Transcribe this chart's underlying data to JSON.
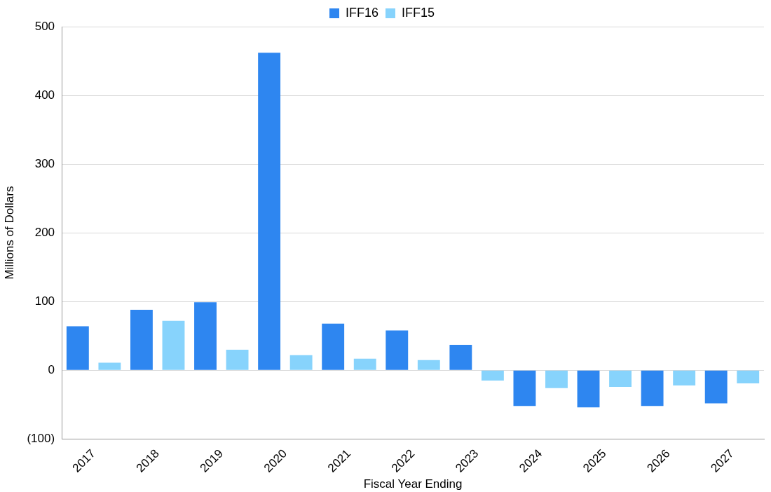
{
  "chart_data": {
    "type": "bar",
    "xlabel": "Fiscal Year Ending",
    "ylabel": "Millions of Dollars",
    "categories": [
      "2017",
      "2018",
      "2019",
      "2020",
      "2021",
      "2022",
      "2023",
      "2024",
      "2025",
      "2026",
      "2027"
    ],
    "series": [
      {
        "name": "IFF16",
        "color": "#2e86f0",
        "values": [
          64,
          88,
          99,
          462,
          68,
          58,
          37,
          -52,
          -54,
          -52,
          -48
        ]
      },
      {
        "name": "IFF15",
        "color": "#87d3fc",
        "values": [
          11,
          72,
          30,
          22,
          17,
          15,
          -15,
          -26,
          -24,
          -22,
          -19
        ]
      }
    ],
    "ylim": [
      -100,
      500
    ],
    "yticks": [
      {
        "value": -100,
        "label": "(100)"
      },
      0,
      100,
      200,
      300,
      400,
      500
    ],
    "grid": "y",
    "legend": "top"
  }
}
